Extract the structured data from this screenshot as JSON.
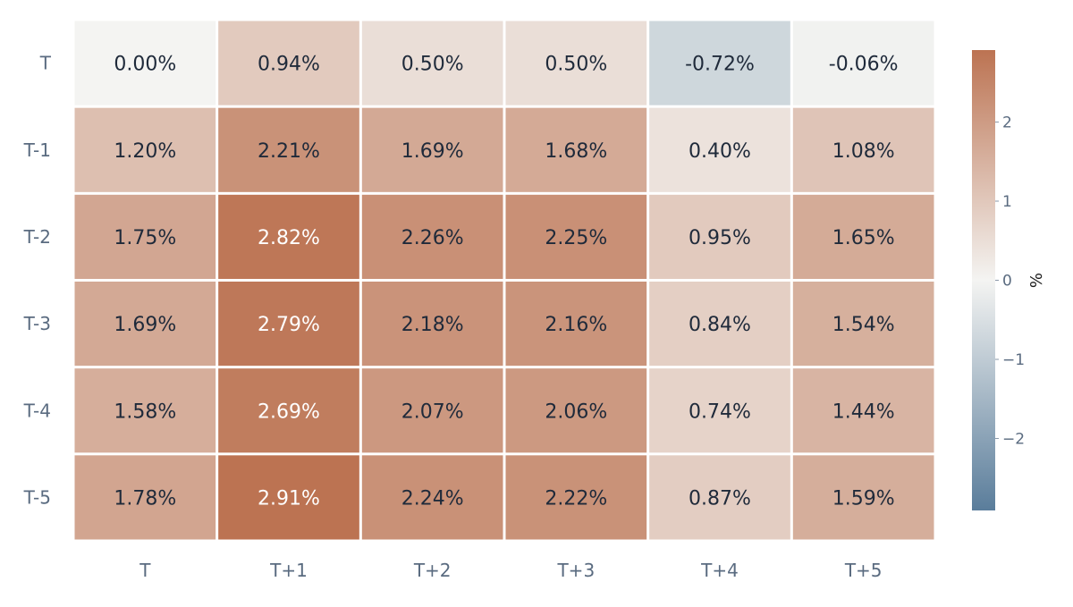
{
  "chart_data": {
    "type": "heatmap",
    "x_categories": [
      "T",
      "T+1",
      "T+2",
      "T+3",
      "T+4",
      "T+5"
    ],
    "y_categories": [
      "T",
      "T-1",
      "T-2",
      "T-3",
      "T-4",
      "T-5"
    ],
    "values": [
      [
        0.0,
        0.94,
        0.5,
        0.5,
        -0.72,
        -0.06
      ],
      [
        1.2,
        2.21,
        1.69,
        1.68,
        0.4,
        1.08
      ],
      [
        1.75,
        2.82,
        2.26,
        2.25,
        0.95,
        1.65
      ],
      [
        1.69,
        2.79,
        2.18,
        2.16,
        0.84,
        1.54
      ],
      [
        1.58,
        2.69,
        2.07,
        2.06,
        0.74,
        1.44
      ],
      [
        1.78,
        2.91,
        2.24,
        2.22,
        0.87,
        1.59
      ]
    ],
    "cell_labels": [
      [
        "0.00%",
        "0.94%",
        "0.50%",
        "0.50%",
        "-0.72%",
        "-0.06%"
      ],
      [
        "1.20%",
        "2.21%",
        "1.69%",
        "1.68%",
        "0.40%",
        "1.08%"
      ],
      [
        "1.75%",
        "2.82%",
        "2.26%",
        "2.25%",
        "0.95%",
        "1.65%"
      ],
      [
        "1.69%",
        "2.79%",
        "2.18%",
        "2.16%",
        "0.84%",
        "1.54%"
      ],
      [
        "1.58%",
        "2.69%",
        "2.07%",
        "2.06%",
        "0.74%",
        "1.44%"
      ],
      [
        "1.78%",
        "2.91%",
        "2.24%",
        "2.22%",
        "0.87%",
        "1.59%"
      ]
    ],
    "colorscale": {
      "zmin": -2.91,
      "zmid": 0,
      "zmax": 2.91,
      "low_color": "#5a7d9b",
      "mid_color": "#f4f4f2",
      "high_color": "#bc7352"
    },
    "colorbar": {
      "title": "%",
      "ticks": [
        2,
        1,
        0,
        -1,
        -2
      ],
      "tick_labels": [
        "2",
        "1",
        "0",
        "−1",
        "−2"
      ]
    },
    "label_colors": {
      "dark": "#1f2a3a",
      "light": "#ffffff"
    }
  }
}
